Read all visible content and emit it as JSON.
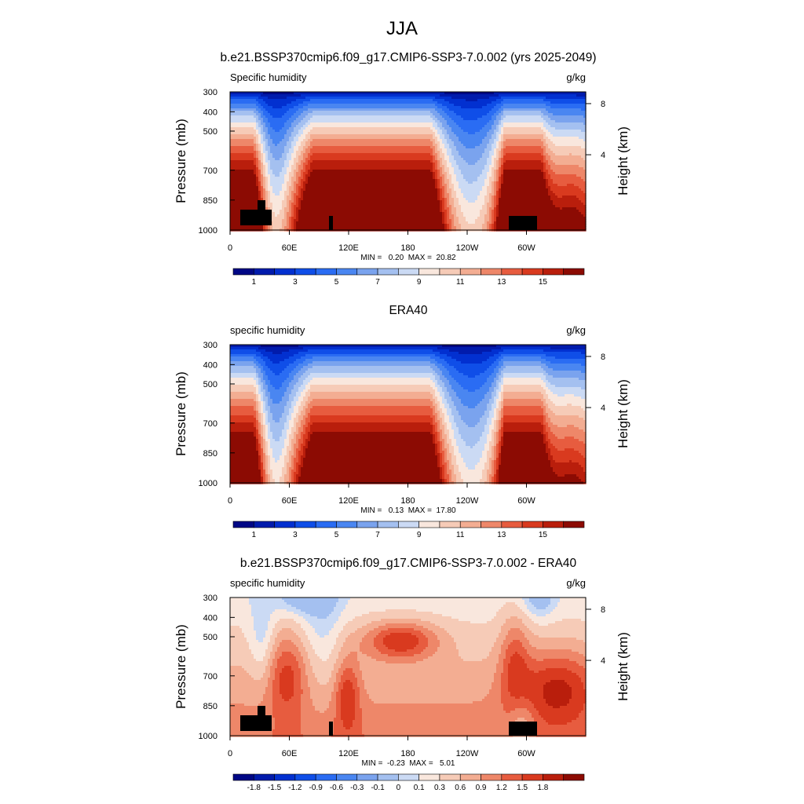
{
  "figure_title": "JJA",
  "chart_data": [
    {
      "type": "heatmap",
      "title": "b.e21.BSSP370cmip6.f09_g17.CMIP6-SSP3-7.0.002 (yrs 2025-2049)",
      "left_label": "Specific humidity",
      "right_label": "g/kg",
      "ylabel": "Pressure (mb)",
      "ylabel_right": "Height (km)",
      "xticks": [
        "0",
        "60E",
        "120E",
        "180",
        "120W",
        "60W"
      ],
      "yticks": [
        "300",
        "400",
        "500",
        "700",
        "850",
        "1000"
      ],
      "yticks_right": [
        "8",
        "4"
      ],
      "stats": "MIN =   0.20  MAX =  20.82",
      "min": 0.2,
      "max": 20.82,
      "ylim": [
        1000,
        300
      ],
      "colorbar_ticks": [
        "1",
        "3",
        "5",
        "7",
        "9",
        "11",
        "13",
        "15"
      ],
      "colorbar_levels": [
        0,
        1,
        2,
        3,
        4,
        5,
        6,
        7,
        8,
        9,
        10,
        11,
        12,
        13,
        14,
        15,
        16
      ],
      "masked_terrain": true
    },
    {
      "type": "heatmap",
      "title": "ERA40",
      "left_label": "specific humidity",
      "right_label": "g/kg",
      "ylabel": "Pressure (mb)",
      "ylabel_right": "Height (km)",
      "xticks": [
        "0",
        "60E",
        "120E",
        "180",
        "120W",
        "60W"
      ],
      "yticks": [
        "300",
        "400",
        "500",
        "700",
        "850",
        "1000"
      ],
      "yticks_right": [
        "8",
        "4"
      ],
      "stats": "MIN =   0.13  MAX =  17.80",
      "min": 0.13,
      "max": 17.8,
      "ylim": [
        1000,
        300
      ],
      "colorbar_ticks": [
        "1",
        "3",
        "5",
        "7",
        "9",
        "11",
        "13",
        "15"
      ],
      "colorbar_levels": [
        0,
        1,
        2,
        3,
        4,
        5,
        6,
        7,
        8,
        9,
        10,
        11,
        12,
        13,
        14,
        15,
        16
      ],
      "masked_terrain": false
    },
    {
      "type": "heatmap",
      "title": "b.e21.BSSP370cmip6.f09_g17.CMIP6-SSP3-7.0.002 - ERA40",
      "left_label": "specific humidity",
      "right_label": "g/kg",
      "ylabel": "Pressure (mb)",
      "ylabel_right": "Height (km)",
      "xticks": [
        "0",
        "60E",
        "120E",
        "180",
        "120W",
        "60W"
      ],
      "yticks": [
        "300",
        "400",
        "500",
        "700",
        "850",
        "1000"
      ],
      "yticks_right": [
        "8",
        "4"
      ],
      "stats": "MIN =  -0.23  MAX =   5.01",
      "min": -0.23,
      "max": 5.01,
      "ylim": [
        1000,
        300
      ],
      "colorbar_ticks": [
        "-1.8",
        "-1.5",
        "-1.2",
        "-0.9",
        "-0.6",
        "-0.3",
        "-0.1",
        "0",
        "0.1",
        "0.3",
        "0.6",
        "0.9",
        "1.2",
        "1.5",
        "1.8"
      ],
      "colorbar_levels": [
        -2.1,
        -1.8,
        -1.5,
        -1.2,
        -0.9,
        -0.6,
        -0.3,
        -0.1,
        0,
        0.1,
        0.3,
        0.6,
        0.9,
        1.2,
        1.5,
        1.8,
        2.1
      ],
      "masked_terrain": true
    }
  ],
  "colormap": [
    "#000785",
    "#011bac",
    "#0230d0",
    "#0f4ee8",
    "#2a6cf3",
    "#4a86f1",
    "#7aa3ee",
    "#a4c0f0",
    "#cbdaf4",
    "#f9e7dd",
    "#f6cbb7",
    "#f3ad92",
    "#ee8769",
    "#e75c3f",
    "#d93a1f",
    "#b91e0c",
    "#8c0b03"
  ],
  "terrain_color": "#000000"
}
